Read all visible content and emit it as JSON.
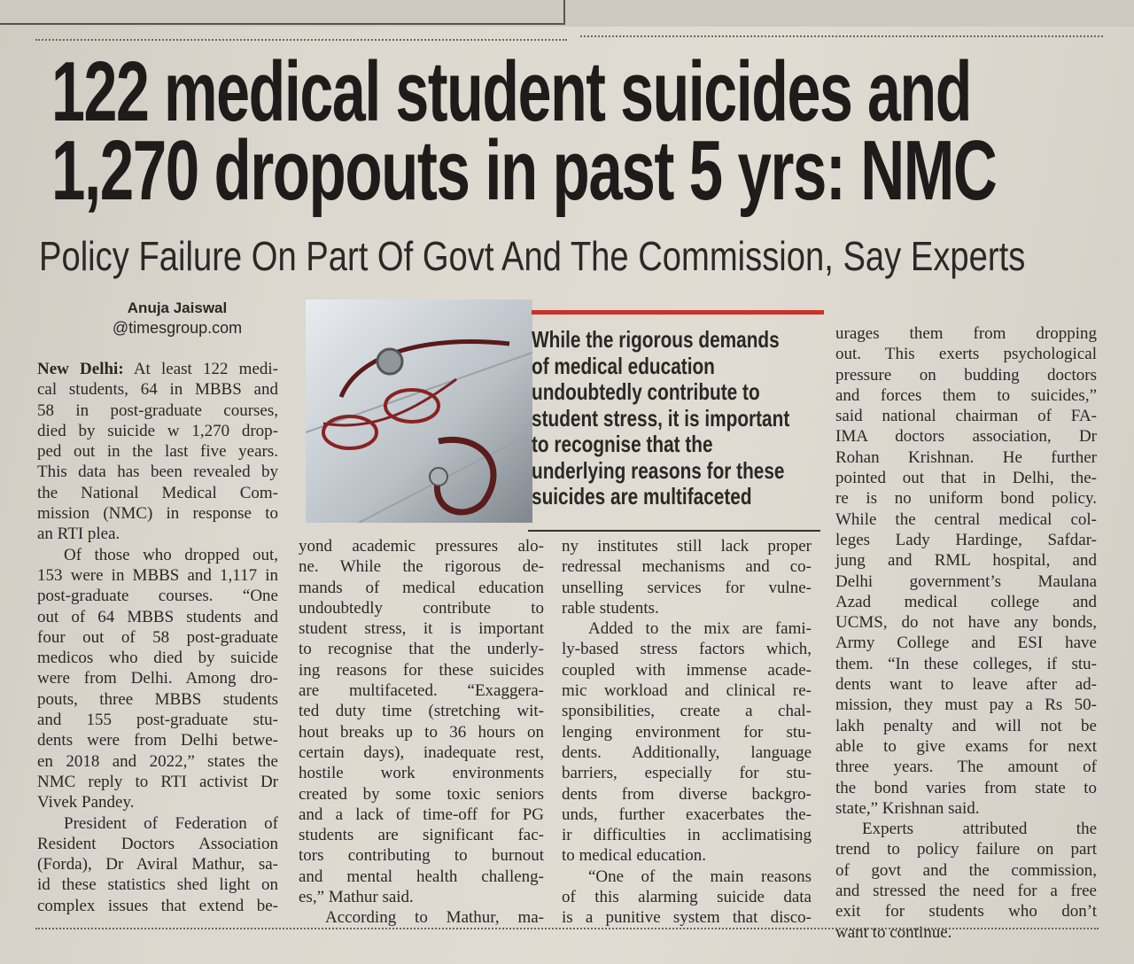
{
  "headline": [
    "122 medical student suicides and",
    "1,270 dropouts in past 5 yrs: NMC"
  ],
  "deck": "Policy Failure On Part Of Govt And The Commission, Say Experts",
  "byline": {
    "name": "Anuja Jaiswal",
    "email": "@timesgroup.com"
  },
  "accent_color": "#c8322b",
  "photo": {
    "icon": "stethoscope-and-glasses-photo"
  },
  "pull_quote": [
    "While the rigorous demands",
    "of medical education",
    "undoubtedly contribute to",
    "student stress, it is important",
    "to recognise that the",
    "underlying reasons for these",
    "suicides are multifaceted"
  ],
  "dateline": "New Delhi:",
  "columns": [
    [
      {
        "indent": false,
        "lines": [
          "At least 122 medi-",
          "cal students, 64 in MBBS and",
          "58 in post-graduate courses,",
          "died by suicide w 1,270 drop-",
          "ped out in the last five years.",
          "This data has been revealed by",
          "the National Medical Com-",
          "mission (NMC) in response to",
          "an RTI plea."
        ]
      },
      {
        "indent": true,
        "lines": [
          "Of those who dropped out,",
          "153 were in MBBS and 1,117 in",
          "post-graduate courses. “One",
          "out of 64 MBBS students and",
          "four out of 58 post-graduate",
          "medicos who died by suicide",
          "were from Delhi. Among dro-",
          "pouts, three MBBS students",
          "and 155 post-graduate stu-",
          "dents were from Delhi betwe-",
          "en 2018 and 2022,” states the",
          "NMC reply to RTI activist Dr",
          "Vivek Pandey."
        ]
      },
      {
        "indent": true,
        "lines": [
          "President of Federation of",
          "Resident Doctors Association",
          "(Forda), Dr Aviral Mathur, sa-",
          "id these statistics shed light on",
          "complex issues that extend be-"
        ],
        "continues": true
      }
    ],
    [
      {
        "indent": false,
        "lines": [
          "yond academic pressures alo-",
          "ne. While the rigorous de-",
          "mands of medical education",
          "undoubtedly contribute to",
          "student stress, it is important",
          "to recognise that the underly-",
          "ing reasons for these suicides",
          "are multifaceted. “Exaggera-",
          "ted duty time (stretching wit-",
          "hout breaks up to 36 hours on",
          "certain days), inadequate rest,",
          "hostile work environments",
          "created by some toxic seniors",
          "and a lack of time-off for PG",
          "students are significant fac-",
          "tors contributing to burnout",
          "and mental health challeng-",
          "es,” Mathur said."
        ]
      },
      {
        "indent": true,
        "lines": [
          "According to Mathur, ma-"
        ],
        "continues": true
      }
    ],
    [
      {
        "indent": false,
        "lines": [
          "ny institutes still lack proper",
          "redressal mechanisms and co-",
          "unselling services for vulne-",
          "rable students."
        ]
      },
      {
        "indent": true,
        "lines": [
          "Added to the mix are fami-",
          "ly-based stress factors which,",
          "coupled with immense acade-",
          "mic workload and clinical re-",
          "sponsibilities, create a chal-",
          "lenging environment for stu-",
          "dents. Additionally, language",
          "barriers, especially for stu-",
          "dents from diverse backgro-",
          "unds, further exacerbates the-",
          "ir difficulties in acclimatising",
          "to medical education."
        ]
      },
      {
        "indent": true,
        "lines": [
          "“One of the main reasons",
          "of this alarming suicide data",
          "is a punitive system that disco-"
        ],
        "continues": true
      }
    ],
    [
      {
        "indent": false,
        "lines": [
          "urages them from dropping",
          "out. This exerts psychological",
          "pressure on budding doctors",
          "and forces them to suicides,”",
          "said national chairman of FA-",
          "IMA doctors association, Dr",
          "Rohan Krishnan. He further",
          "pointed out that in Delhi, the-",
          "re is no uniform bond policy.",
          "While the central medical col-",
          "leges Lady Hardinge, Safdar-",
          "jung and RML hospital, and",
          "Delhi government’s Maulana",
          "Azad medical college and",
          "UCMS, do not have any bonds,",
          "Army College and ESI have",
          "them. “In these colleges, if stu-",
          "dents want to leave after ad-",
          "mission, they must pay a Rs 50-",
          "lakh penalty and will not be",
          "able to give exams for next",
          "three years. The amount of",
          "the bond varies from state to",
          "state,” Krishnan said."
        ]
      },
      {
        "indent": true,
        "lines": [
          "Experts attributed the",
          "trend to policy failure on part",
          "of govt and the commission,",
          "and stressed the need for a free",
          "exit for students who don’t",
          "want to continue."
        ]
      }
    ]
  ]
}
